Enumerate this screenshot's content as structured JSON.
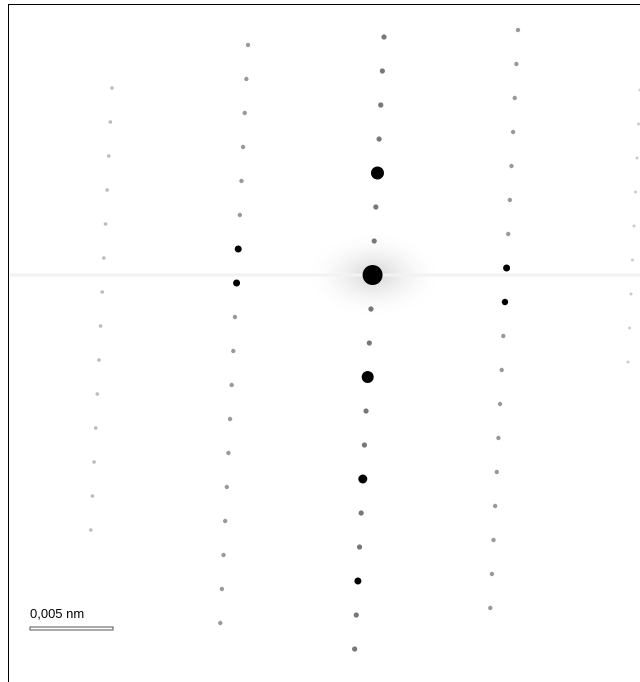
{
  "scale_bar": {
    "label": "0,005 nm"
  }
}
